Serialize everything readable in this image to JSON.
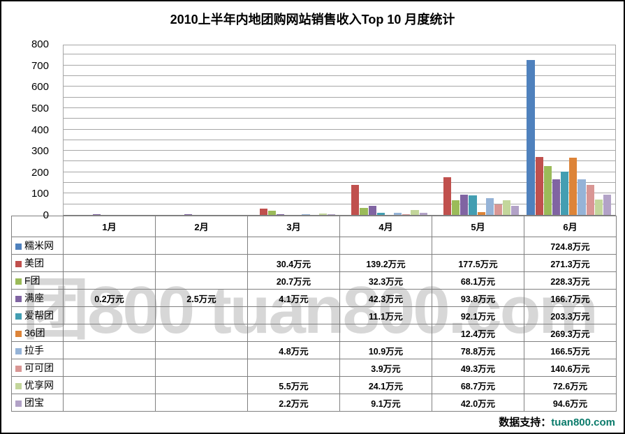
{
  "title": "2010上半年内地团购网站销售收入Top 10 月度统计",
  "watermark": {
    "text": "团800 tuan800.com"
  },
  "credit": {
    "label": "数据支持：",
    "source": "tuan800.com",
    "source_color": "#0b7b6b"
  },
  "chart_data": {
    "type": "bar",
    "title": "2010上半年内地团购网站销售收入Top 10 月度统计",
    "categories": [
      "1月",
      "2月",
      "3月",
      "4月",
      "5月",
      "6月"
    ],
    "value_unit": "万元",
    "ylabel": "",
    "xlabel": "",
    "ylim": [
      0,
      800
    ],
    "y_tick_interval": 100,
    "y_minor_gridline_interval": 50,
    "grid": true,
    "legend_position": "table-left-column",
    "y_tick_labels": [
      "0",
      "100",
      "200",
      "300",
      "400",
      "500",
      "600",
      "700",
      "800"
    ],
    "series": [
      {
        "name": "糯米网",
        "color": "#4F81BD",
        "values": [
          "",
          "",
          "",
          "",
          "",
          "724.8"
        ]
      },
      {
        "name": "美团",
        "color": "#C0504D",
        "values": [
          "",
          "",
          "30.4",
          "139.2",
          "177.5",
          "271.3"
        ]
      },
      {
        "name": "F团",
        "color": "#9BBB59",
        "values": [
          "",
          "",
          "20.7",
          "32.3",
          "68.1",
          "228.3"
        ]
      },
      {
        "name": "满座",
        "color": "#8064A2",
        "values": [
          "0.2",
          "2.5",
          "4.1",
          "42.3",
          "93.8",
          "166.7"
        ]
      },
      {
        "name": "爱帮团",
        "color": "#439EB2",
        "values": [
          "",
          "",
          "",
          "11.1",
          "92.1",
          "203.3"
        ]
      },
      {
        "name": "36团",
        "color": "#DD8438",
        "values": [
          "",
          "",
          "",
          "",
          "12.4",
          "269.3"
        ]
      },
      {
        "name": "拉手",
        "color": "#95B3D7",
        "values": [
          "",
          "",
          "4.8",
          "10.9",
          "78.8",
          "166.5"
        ]
      },
      {
        "name": "可可团",
        "color": "#D99694",
        "values": [
          "",
          "",
          "",
          "3.9",
          "49.3",
          "140.6"
        ]
      },
      {
        "name": "优享网",
        "color": "#C3D69B",
        "values": [
          "",
          "",
          "5.5",
          "24.1",
          "68.7",
          "72.6"
        ]
      },
      {
        "name": "团宝",
        "color": "#B2A2C7",
        "values": [
          "",
          "",
          "2.2",
          "9.1",
          "42.0",
          "94.6"
        ]
      }
    ]
  }
}
